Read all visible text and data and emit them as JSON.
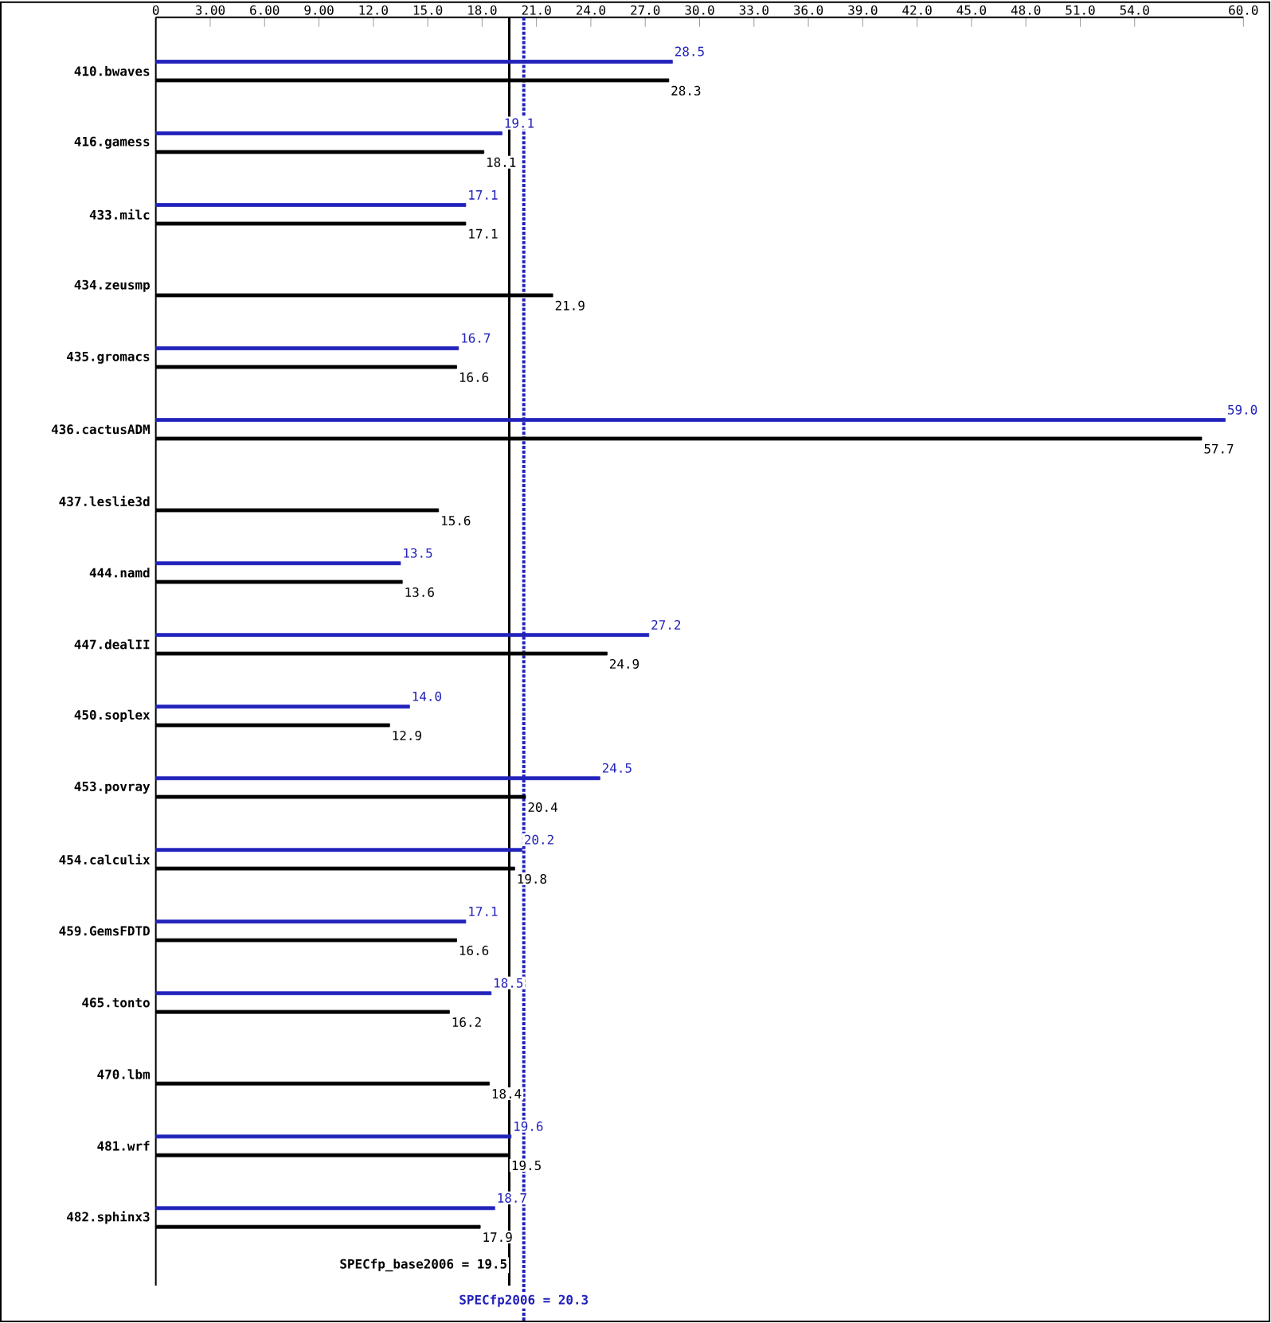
{
  "chart_data": {
    "type": "bar",
    "orientation": "horizontal",
    "categories": [
      "410.bwaves",
      "416.gamess",
      "433.milc",
      "434.zeusmp",
      "435.gromacs",
      "436.cactusADM",
      "437.leslie3d",
      "444.namd",
      "447.dealII",
      "450.soplex",
      "453.povray",
      "454.calculix",
      "459.GemsFDTD",
      "465.tonto",
      "470.lbm",
      "481.wrf",
      "482.sphinx3"
    ],
    "series": [
      {
        "color": "#2222bb",
        "values": [
          28.5,
          19.1,
          17.1,
          null,
          16.7,
          59.0,
          null,
          13.5,
          27.2,
          14.0,
          24.5,
          20.2,
          17.1,
          18.5,
          null,
          19.6,
          18.7
        ],
        "value_labels": [
          "28.5",
          "19.1",
          "17.1",
          null,
          "16.7",
          "59.0",
          null,
          "13.5",
          "27.2",
          "14.0",
          "24.5",
          "20.2",
          "17.1",
          "18.5",
          null,
          "19.6",
          "18.7"
        ]
      },
      {
        "color": "#000000",
        "values": [
          28.3,
          18.1,
          17.1,
          21.9,
          16.6,
          57.7,
          15.6,
          13.6,
          24.9,
          12.9,
          20.4,
          19.8,
          16.6,
          16.2,
          18.4,
          19.5,
          17.9
        ],
        "value_labels": [
          "28.3",
          "18.1",
          "17.1",
          "21.9",
          "16.6",
          "57.7",
          "15.6",
          "13.6",
          "24.9",
          "12.9",
          "20.4",
          "19.8",
          "16.6",
          "16.2",
          "18.4",
          "19.5",
          "17.9"
        ]
      }
    ],
    "xlim": [
      0,
      60
    ],
    "xticks": [
      0,
      {
        "value": 3,
        "label": "3.00"
      },
      {
        "value": 6,
        "label": "6.00"
      },
      {
        "value": 9,
        "label": "9.00"
      },
      {
        "value": 12,
        "label": "12.0"
      },
      {
        "value": 15,
        "label": "15.0"
      },
      {
        "value": 18,
        "label": "18.0"
      },
      {
        "value": 21,
        "label": "21.0"
      },
      {
        "value": 24,
        "label": "24.0"
      },
      {
        "value": 27,
        "label": "27.0"
      },
      {
        "value": 30,
        "label": "30.0"
      },
      {
        "value": 33,
        "label": "33.0"
      },
      {
        "value": 36,
        "label": "36.0"
      },
      {
        "value": 39,
        "label": "39.0"
      },
      {
        "value": 42,
        "label": "42.0"
      },
      {
        "value": 45,
        "label": "45.0"
      },
      {
        "value": 48,
        "label": "48.0"
      },
      {
        "value": 51,
        "label": "51.0"
      },
      {
        "value": 54,
        "label": "54.0"
      },
      {
        "value": 60,
        "label": "60.0"
      }
    ],
    "ref_lines": [
      {
        "axis": "x",
        "value": 19.5,
        "label": "SPECfp_base2006 = 19.5",
        "color": "#000000",
        "line_style": "solid"
      },
      {
        "axis": "x",
        "value": 20.3,
        "label": "SPECfp2006 = 20.3",
        "color": "#2222bb",
        "line_style": "dotted"
      }
    ]
  }
}
